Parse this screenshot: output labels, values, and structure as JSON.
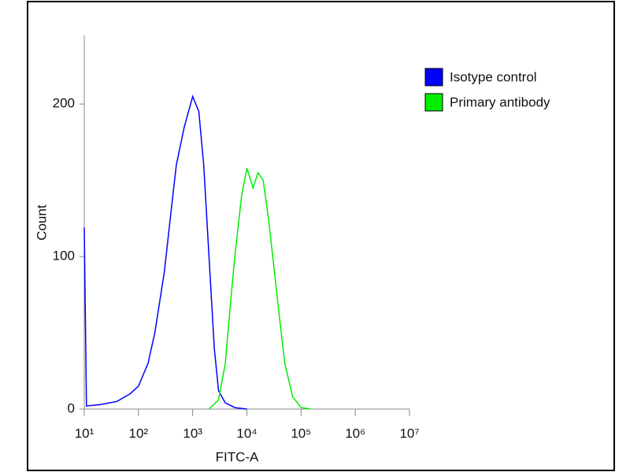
{
  "chart_data": {
    "type": "line",
    "x_label": "FITC-A",
    "y_label": "Count",
    "x_log": true,
    "xlim": [
      10,
      10000000
    ],
    "xticks": [
      {
        "value": 10,
        "label": "10¹"
      },
      {
        "value": 100,
        "label": "10²"
      },
      {
        "value": 1000,
        "label": "10³"
      },
      {
        "value": 10000,
        "label": "10⁴"
      },
      {
        "value": 100000,
        "label": "10⁵"
      },
      {
        "value": 1000000,
        "label": "10⁶"
      },
      {
        "value": 10000000,
        "label": "10⁷"
      }
    ],
    "ylim": [
      0,
      245
    ],
    "yticks": [
      0,
      100,
      200
    ],
    "legend": "upper right",
    "series": [
      {
        "name": "Isotype control",
        "color": "#0000ff",
        "x": [
          10,
          11,
          20,
          40,
          70,
          100,
          150,
          200,
          300,
          400,
          500,
          700,
          1000,
          1300,
          1600,
          2000,
          2500,
          3000,
          4000,
          6000,
          10000
        ],
        "values": [
          119,
          2,
          3,
          5,
          10,
          15,
          30,
          50,
          90,
          130,
          160,
          185,
          205,
          195,
          160,
          100,
          40,
          12,
          4,
          1,
          0
        ]
      },
      {
        "name": "Primary antibody",
        "color": "#00ee00",
        "x": [
          2000,
          3000,
          4000,
          5000,
          6000,
          8000,
          10000,
          13000,
          16000,
          20000,
          25000,
          30000,
          40000,
          50000,
          70000,
          100000,
          150000
        ],
        "values": [
          0,
          6,
          30,
          70,
          100,
          140,
          158,
          145,
          155,
          150,
          125,
          100,
          60,
          30,
          8,
          1,
          0
        ]
      }
    ]
  }
}
